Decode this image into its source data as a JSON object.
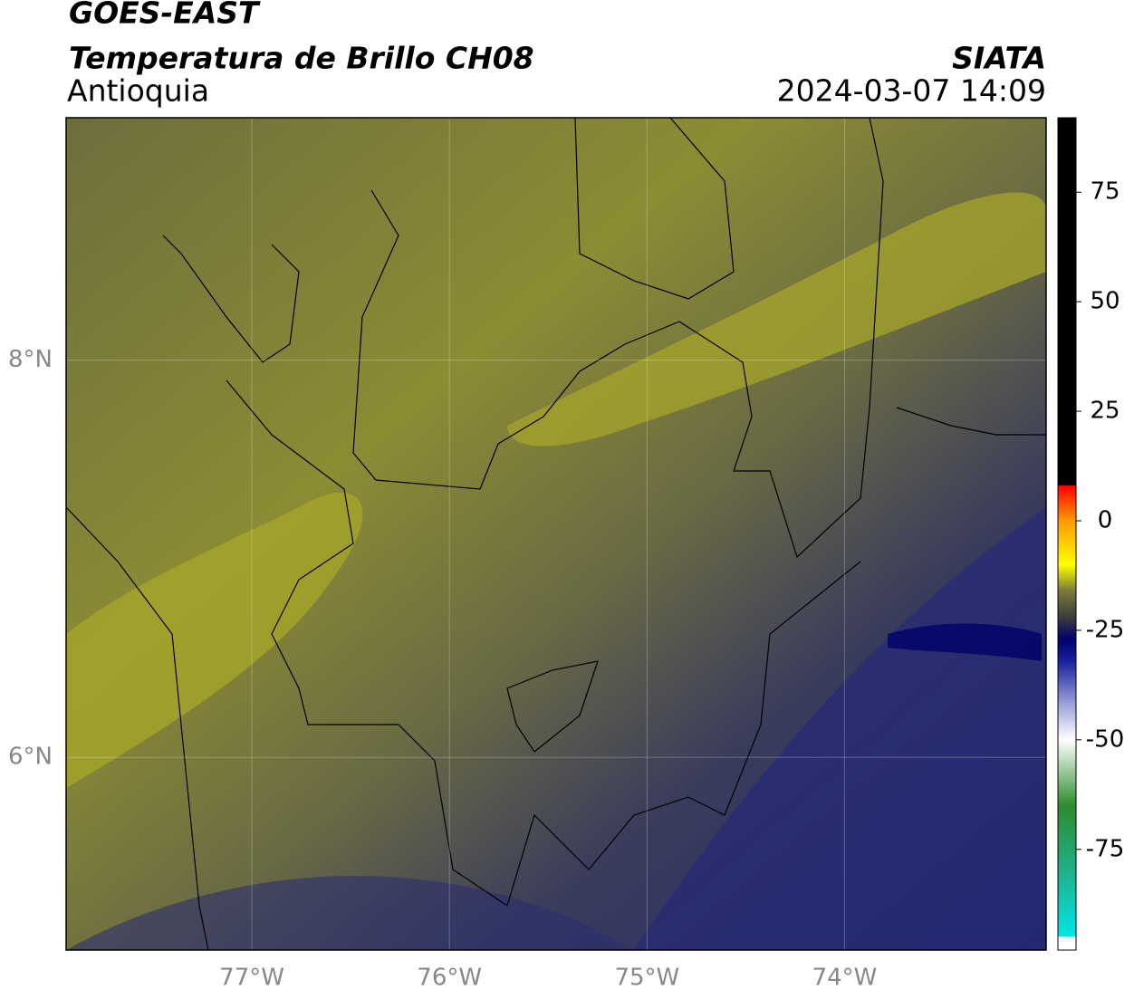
{
  "header": {
    "satellite": "GOES-EAST",
    "product": "Temperatura de Brillo CH08",
    "region": "Antioquia",
    "agency": "SIATA",
    "timestamp": "2024-03-07 14:09"
  },
  "map": {
    "lon_range": [
      -77.94,
      -72.98
    ],
    "lat_range": [
      5.03,
      9.22
    ],
    "lon_ticks": [
      {
        "value": -77,
        "label": "77°W"
      },
      {
        "value": -76,
        "label": "76°W"
      },
      {
        "value": -75,
        "label": "75°W"
      },
      {
        "value": -74,
        "label": "74°W"
      }
    ],
    "lat_ticks": [
      {
        "value": 8,
        "label": "8°N"
      },
      {
        "value": 6,
        "label": "6°N"
      }
    ],
    "grid": true
  },
  "colorbar": {
    "range": [
      -98,
      92
    ],
    "ticks": [
      75,
      50,
      25,
      0,
      -25,
      -50,
      -75
    ],
    "stops": [
      {
        "value": -98,
        "color": "#ffffff"
      },
      {
        "value": -95,
        "color": "#ffffff"
      },
      {
        "value": -94.9,
        "color": "#00e6e6"
      },
      {
        "value": -80,
        "color": "#20b08a"
      },
      {
        "value": -65,
        "color": "#2e8b2e"
      },
      {
        "value": -58,
        "color": "#8fc28f"
      },
      {
        "value": -50,
        "color": "#ffffff"
      },
      {
        "value": -42,
        "color": "#9da4d8"
      },
      {
        "value": -32,
        "color": "#1a1f9a"
      },
      {
        "value": -27,
        "color": "#00006e"
      },
      {
        "value": -22,
        "color": "#3c3c3c"
      },
      {
        "value": -16,
        "color": "#7a7a3a"
      },
      {
        "value": -10,
        "color": "#ffff00"
      },
      {
        "value": 0,
        "color": "#ff9900"
      },
      {
        "value": 8,
        "color": "#ff0000"
      },
      {
        "value": 8.1,
        "color": "#000000"
      },
      {
        "value": 92,
        "color": "#000000"
      }
    ]
  }
}
